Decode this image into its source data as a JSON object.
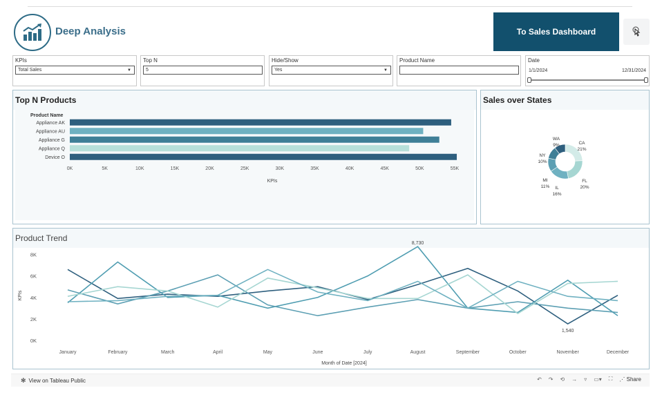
{
  "header": {
    "title": "Deep Analysis",
    "nav_button_label": "To Sales Dashboard",
    "logo_icon": "growth-chart-icon",
    "pointer_icon": "hand-pointer-icon"
  },
  "filters": {
    "kpis": {
      "label": "KPIs",
      "value": "Total Sales"
    },
    "top_n": {
      "label": "Top N",
      "value": "5"
    },
    "hide_show": {
      "label": "Hide/Show",
      "value": "Yes"
    },
    "product_name": {
      "label": "Product Name",
      "value": ""
    },
    "date": {
      "label": "Date",
      "start": "1/1/2024",
      "end": "12/31/2024"
    }
  },
  "top_products": {
    "title": "Top N Products",
    "row_header": "Product Name",
    "xlabel": "KPIs"
  },
  "sales_states": {
    "title": "Sales over States"
  },
  "product_trend": {
    "title": "Product Trend",
    "ylabel": "KPIs",
    "xlabel": "Month of Date [2024]"
  },
  "footer": {
    "tableau_link": "View on Tableau Public",
    "share_label": "Share"
  },
  "colors": {
    "dark": "#2e5f7e",
    "teal": "#5fa7b8",
    "mid": "#3f7f97",
    "light": "#a6d6d2",
    "nav": "#12506d"
  },
  "chart_data": [
    {
      "type": "bar",
      "title": "Top N Products",
      "xlabel": "KPIs",
      "ylabel": "Product Name",
      "categories": [
        "Appliance AK",
        "Appliance AU",
        "Appliance G",
        "Appliance Q",
        "Device O"
      ],
      "values": [
        54500,
        50500,
        52800,
        48500,
        55300
      ],
      "colors": [
        "#2e5f7e",
        "#6fb1c1",
        "#3f7f97",
        "#b7e0da",
        "#2e5f7e"
      ],
      "xlim": [
        0,
        55000
      ],
      "ticks": [
        "0K",
        "5K",
        "10K",
        "15K",
        "20K",
        "25K",
        "30K",
        "35K",
        "40K",
        "45K",
        "50K",
        "55K"
      ],
      "tick_values": [
        0,
        5000,
        10000,
        15000,
        20000,
        25000,
        30000,
        35000,
        40000,
        45000,
        50000,
        55000
      ]
    },
    {
      "type": "pie",
      "title": "Sales over States",
      "slices": [
        {
          "label": "CA",
          "pct": "21%",
          "value": 21,
          "color": "#d3ebe8"
        },
        {
          "label": "FL",
          "pct": "20%",
          "value": 20,
          "color": "#a6d6d2"
        },
        {
          "label": "IL",
          "pct": "16%",
          "value": 16,
          "color": "#6fb1c1"
        },
        {
          "label": "MI",
          "pct": "11%",
          "value": 11,
          "color": "#5c9fb3"
        },
        {
          "label": "NY",
          "pct": "10%",
          "value": 10,
          "color": "#3f7f97"
        },
        {
          "label": "WA",
          "pct": "9%",
          "value": 9,
          "color": "#2e5f7e"
        }
      ]
    },
    {
      "type": "line",
      "title": "Product Trend",
      "xlabel": "Month of Date [2024]",
      "ylabel": "KPIs",
      "categories": [
        "January",
        "February",
        "March",
        "April",
        "May",
        "June",
        "July",
        "August",
        "September",
        "October",
        "November",
        "December"
      ],
      "ylim": [
        0,
        9000
      ],
      "yticks": [
        "0K",
        "2K",
        "4K",
        "6K",
        "8K"
      ],
      "ytick_values": [
        0,
        2000,
        4000,
        6000,
        8000
      ],
      "annotations": [
        {
          "text": "8,730",
          "series": 1,
          "index": 7,
          "position": "above"
        },
        {
          "text": "1,540",
          "series": 0,
          "index": 10,
          "position": "below"
        }
      ],
      "series": [
        {
          "color": "#2e5f7e",
          "values": [
            6600,
            3900,
            4300,
            4100,
            4600,
            5000,
            3800,
            5200,
            6700,
            4600,
            1540,
            4200
          ]
        },
        {
          "color": "#4f9db1",
          "values": [
            3500,
            7300,
            4000,
            4200,
            3000,
            4000,
            6000,
            8730,
            3000,
            2600,
            5600,
            2300
          ]
        },
        {
          "color": "#5c9fb3",
          "values": [
            4700,
            3400,
            4600,
            6100,
            3300,
            2300,
            3100,
            3800,
            3000,
            3600,
            3000,
            2600
          ]
        },
        {
          "color": "#a6d6d2",
          "values": [
            4100,
            5000,
            4600,
            3100,
            5800,
            4900,
            3900,
            3900,
            6100,
            2500,
            5300,
            5500
          ]
        },
        {
          "color": "#6fb1c1",
          "values": [
            3600,
            3700,
            4100,
            4200,
            6600,
            4500,
            3700,
            5500,
            3000,
            5500,
            4100,
            3700
          ]
        }
      ]
    }
  ]
}
